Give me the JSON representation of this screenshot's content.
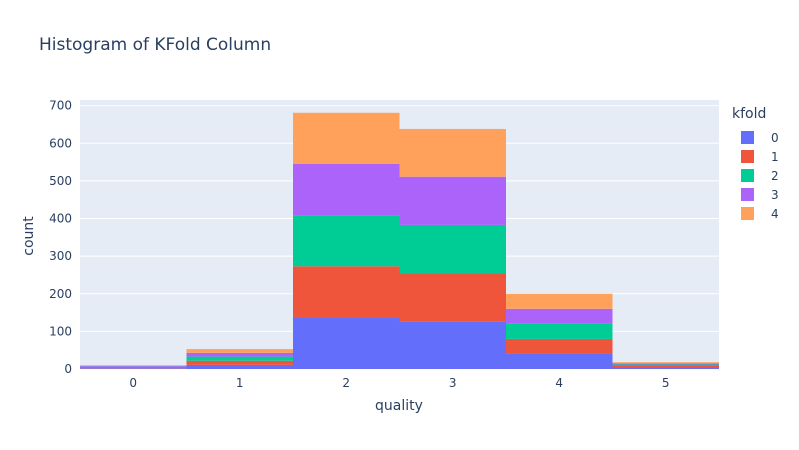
{
  "chart_data": {
    "type": "bar",
    "barmode": "stack",
    "title": "Histogram of KFold Column",
    "xlabel": "quality",
    "ylabel": "count",
    "categories": [
      "0",
      "1",
      "2",
      "3",
      "4",
      "5"
    ],
    "ylim": [
      0,
      715
    ],
    "yticks": [
      0,
      100,
      200,
      300,
      400,
      500,
      600,
      700
    ],
    "legend_title": "kfold",
    "legend_position": "right",
    "grid": true,
    "plot_bgcolor": "#E5ECF6",
    "series": [
      {
        "name": "0",
        "color": "#636EFA",
        "values": [
          2,
          11,
          137,
          127,
          40,
          4
        ]
      },
      {
        "name": "1",
        "color": "#EF553B",
        "values": [
          2,
          11,
          136,
          128,
          40,
          4
        ]
      },
      {
        "name": "2",
        "color": "#00CC96",
        "values": [
          2,
          11,
          136,
          128,
          40,
          4
        ]
      },
      {
        "name": "3",
        "color": "#AB63FA",
        "values": [
          2,
          10,
          136,
          128,
          40,
          3
        ]
      },
      {
        "name": "4",
        "color": "#FFA15A",
        "values": [
          2,
          10,
          136,
          127,
          40,
          3
        ]
      }
    ]
  }
}
